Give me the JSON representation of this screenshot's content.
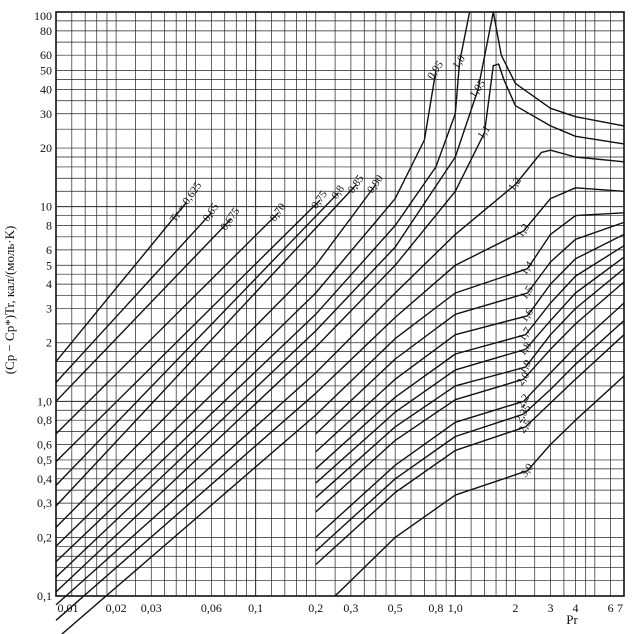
{
  "chart_data": {
    "type": "line",
    "title": "",
    "xlabel": "Pr",
    "ylabel": "(Cp − Cp*)Tr, кал/(моль·K)",
    "x_scale": "log",
    "y_scale": "log",
    "xlim": [
      0.01,
      7
    ],
    "ylim": [
      0.1,
      100
    ],
    "grid": true,
    "legend": "none",
    "colors": {
      "line": "#111111",
      "grid": "#222222",
      "background": "#ffffff"
    },
    "x_tick_labels": [
      {
        "v": 0.01,
        "t": "0,01"
      },
      {
        "v": 0.02,
        "t": "0,02"
      },
      {
        "v": 0.03,
        "t": "0,03"
      },
      {
        "v": 0.06,
        "t": "0,06"
      },
      {
        "v": 0.1,
        "t": "0,1"
      },
      {
        "v": 0.2,
        "t": "0,2"
      },
      {
        "v": 0.3,
        "t": "0,3"
      },
      {
        "v": 0.5,
        "t": "0,5"
      },
      {
        "v": 0.8,
        "t": "0,8"
      },
      {
        "v": 1.0,
        "t": "1,0"
      },
      {
        "v": 2,
        "t": "2"
      },
      {
        "v": 3,
        "t": "3"
      },
      {
        "v": 4,
        "t": "4"
      },
      {
        "v": 6,
        "t": "6"
      },
      {
        "v": 7,
        "t": "7"
      }
    ],
    "y_tick_labels": [
      {
        "v": 0.1,
        "t": "0,1"
      },
      {
        "v": 0.2,
        "t": "0,2"
      },
      {
        "v": 0.3,
        "t": "0,3"
      },
      {
        "v": 0.4,
        "t": "0,4"
      },
      {
        "v": 0.5,
        "t": "0,5"
      },
      {
        "v": 0.6,
        "t": "0,6"
      },
      {
        "v": 0.8,
        "t": "0,8"
      },
      {
        "v": 1.0,
        "t": "1,0"
      },
      {
        "v": 2,
        "t": "2"
      },
      {
        "v": 3,
        "t": "3"
      },
      {
        "v": 4,
        "t": "4"
      },
      {
        "v": 5,
        "t": "5"
      },
      {
        "v": 6,
        "t": "6"
      },
      {
        "v": 8,
        "t": "8"
      },
      {
        "v": 10,
        "t": "10"
      },
      {
        "v": 20,
        "t": "20"
      },
      {
        "v": 30,
        "t": "30"
      },
      {
        "v": 40,
        "t": "40"
      },
      {
        "v": 50,
        "t": "50"
      },
      {
        "v": 60,
        "t": "60"
      },
      {
        "v": 80,
        "t": "80"
      },
      {
        "v": 100,
        "t": "100"
      }
    ],
    "series": [
      {
        "label": "Tr = 0,625",
        "label_at": [
          0.045,
          10.5
        ],
        "points": [
          [
            0.01,
            1.6
          ],
          [
            0.045,
            10.5
          ]
        ]
      },
      {
        "label": "0,65",
        "label_at": [
          0.06,
          9.3
        ],
        "points": [
          [
            0.01,
            1.25
          ],
          [
            0.06,
            9.3
          ]
        ]
      },
      {
        "label": "0,675",
        "label_at": [
          0.075,
          8.6
        ],
        "points": [
          [
            0.01,
            1.0
          ],
          [
            0.075,
            8.6
          ]
        ]
      },
      {
        "label": "0,70",
        "label_at": [
          0.13,
          9.3
        ],
        "points": [
          [
            0.01,
            0.68
          ],
          [
            0.13,
            9.3
          ]
        ]
      },
      {
        "label": "0,75",
        "label_at": [
          0.21,
          10.8
        ],
        "points": [
          [
            0.01,
            0.49
          ],
          [
            0.21,
            10.8
          ]
        ]
      },
      {
        "label": "0,8",
        "label_at": [
          0.26,
          11.8
        ],
        "points": [
          [
            0.01,
            0.37
          ],
          [
            0.26,
            11.8
          ]
        ]
      },
      {
        "label": "0,85",
        "label_at": [
          0.32,
          13
        ],
        "points": [
          [
            0.01,
            0.29
          ],
          [
            0.32,
            13
          ]
        ]
      },
      {
        "label": "0,90",
        "label_at": [
          0.4,
          13
        ],
        "points": [
          [
            0.01,
            0.225
          ],
          [
            0.2,
            5
          ],
          [
            0.4,
            13
          ]
        ]
      },
      {
        "label": "0,95",
        "label_at": [
          0.8,
          50
        ],
        "points": [
          [
            0.01,
            0.18
          ],
          [
            0.2,
            3.6
          ],
          [
            0.5,
            11
          ],
          [
            0.7,
            22
          ],
          [
            0.8,
            50
          ]
        ]
      },
      {
        "label": "1,0",
        "label_at": [
          1.05,
          55
        ],
        "points": [
          [
            0.01,
            0.15
          ],
          [
            0.2,
            2.8
          ],
          [
            0.5,
            8
          ],
          [
            0.8,
            16
          ],
          [
            1.0,
            30
          ],
          [
            1.05,
            55
          ],
          [
            1.18,
            100
          ]
        ]
      },
      {
        "label": "1,05",
        "label_at": [
          1.3,
          40
        ],
        "points": [
          [
            0.01,
            0.125
          ],
          [
            0.2,
            2.3
          ],
          [
            0.5,
            6.2
          ],
          [
            1.0,
            18
          ],
          [
            1.3,
            40
          ],
          [
            1.55,
            100
          ],
          [
            1.7,
            60
          ],
          [
            2.0,
            43
          ],
          [
            3.0,
            32
          ],
          [
            4.0,
            29
          ],
          [
            7.0,
            26
          ]
        ]
      },
      {
        "label": "1,1",
        "label_at": [
          1.4,
          24
        ],
        "points": [
          [
            0.01,
            0.105
          ],
          [
            0.2,
            1.9
          ],
          [
            0.5,
            5.0
          ],
          [
            1.0,
            12
          ],
          [
            1.4,
            24
          ],
          [
            1.55,
            53
          ],
          [
            1.65,
            54
          ],
          [
            1.75,
            45
          ],
          [
            2.0,
            33
          ],
          [
            3.0,
            26
          ],
          [
            4.0,
            23
          ],
          [
            7.0,
            21
          ]
        ]
      },
      {
        "label": "1,2",
        "label_at": [
          2.0,
          13
        ],
        "points": [
          [
            0.01,
            0.09
          ],
          [
            0.2,
            1.4
          ],
          [
            0.5,
            3.6
          ],
          [
            1.0,
            7.2
          ],
          [
            2.0,
            13
          ],
          [
            2.7,
            19
          ],
          [
            3.0,
            19.5
          ],
          [
            4.0,
            18
          ],
          [
            7.0,
            17
          ]
        ]
      },
      {
        "label": "1,3",
        "label_at": [
          2.2,
          7.5
        ],
        "points": [
          [
            0.01,
            0.075
          ],
          [
            0.2,
            1.1
          ],
          [
            0.5,
            2.7
          ],
          [
            1.0,
            5
          ],
          [
            2.2,
            7.5
          ],
          [
            3.0,
            11
          ],
          [
            4.0,
            12.5
          ],
          [
            7.0,
            12
          ]
        ]
      },
      {
        "label": "1,4",
        "label_at": [
          2.3,
          4.8
        ],
        "points": [
          [
            0.01,
            0.06
          ],
          [
            0.2,
            0.85
          ],
          [
            0.5,
            2.1
          ],
          [
            1.0,
            3.6
          ],
          [
            2.3,
            4.8
          ],
          [
            3.0,
            7.2
          ],
          [
            4.0,
            9.0
          ],
          [
            7.0,
            9.3
          ]
        ]
      },
      {
        "label": "1,5",
        "label_at": [
          2.3,
          3.6
        ],
        "points": [
          [
            0.2,
            0.68
          ],
          [
            0.5,
            1.65
          ],
          [
            1.0,
            2.8
          ],
          [
            2.3,
            3.6
          ],
          [
            3.0,
            5.2
          ],
          [
            4.0,
            6.8
          ],
          [
            7.0,
            8.3
          ]
        ]
      },
      {
        "label": "1,6",
        "label_at": [
          2.3,
          2.75
        ],
        "points": [
          [
            0.2,
            0.55
          ],
          [
            0.5,
            1.3
          ],
          [
            1.0,
            2.2
          ],
          [
            2.3,
            2.75
          ],
          [
            3.0,
            4.0
          ],
          [
            4.0,
            5.4
          ],
          [
            7.0,
            7.2
          ]
        ]
      },
      {
        "label": "1,7",
        "label_at": [
          2.25,
          2.2
        ],
        "points": [
          [
            0.2,
            0.45
          ],
          [
            0.5,
            1.05
          ],
          [
            1.0,
            1.75
          ],
          [
            2.25,
            2.2
          ],
          [
            3.0,
            3.2
          ],
          [
            4.0,
            4.4
          ],
          [
            7.0,
            6.3
          ]
        ]
      },
      {
        "label": "1,8",
        "label_at": [
          2.25,
          1.85
        ],
        "points": [
          [
            0.2,
            0.38
          ],
          [
            0.5,
            0.88
          ],
          [
            1.0,
            1.45
          ],
          [
            2.25,
            1.85
          ],
          [
            3.0,
            2.6
          ],
          [
            4.0,
            3.6
          ],
          [
            7.0,
            5.5
          ]
        ]
      },
      {
        "label": "1,9",
        "label_at": [
          2.25,
          1.5
        ],
        "points": [
          [
            0.2,
            0.32
          ],
          [
            0.5,
            0.74
          ],
          [
            1.0,
            1.2
          ],
          [
            2.25,
            1.5
          ],
          [
            3.0,
            2.2
          ],
          [
            4.0,
            3.0
          ],
          [
            7.0,
            4.8
          ]
        ]
      },
      {
        "label": "2,0",
        "label_at": [
          2.2,
          1.3
        ],
        "points": [
          [
            0.2,
            0.27
          ],
          [
            0.5,
            0.63
          ],
          [
            1.0,
            1.02
          ],
          [
            2.2,
            1.3
          ],
          [
            3.0,
            1.85
          ],
          [
            4.0,
            2.5
          ],
          [
            7.0,
            4.1
          ]
        ]
      },
      {
        "label": "2,2",
        "label_at": [
          2.2,
          1.0
        ],
        "points": [
          [
            0.2,
            0.2
          ],
          [
            0.5,
            0.47
          ],
          [
            1.0,
            0.78
          ],
          [
            2.2,
            1.0
          ],
          [
            3.0,
            1.4
          ],
          [
            4.0,
            1.9
          ],
          [
            7.0,
            3.2
          ]
        ]
      },
      {
        "label": "2,35",
        "label_at": [
          2.2,
          0.86
        ],
        "points": [
          [
            0.2,
            0.17
          ],
          [
            0.5,
            0.4
          ],
          [
            1.0,
            0.66
          ],
          [
            2.2,
            0.86
          ],
          [
            3.0,
            1.15
          ],
          [
            4.0,
            1.55
          ],
          [
            7.0,
            2.6
          ]
        ]
      },
      {
        "label": "2,5",
        "label_at": [
          2.25,
          0.74
        ],
        "points": [
          [
            0.2,
            0.145
          ],
          [
            0.5,
            0.34
          ],
          [
            1.0,
            0.56
          ],
          [
            2.25,
            0.74
          ],
          [
            3.0,
            0.98
          ],
          [
            4.0,
            1.3
          ],
          [
            7.0,
            2.2
          ]
        ]
      },
      {
        "label": "3,0",
        "label_at": [
          2.3,
          0.44
        ],
        "points": [
          [
            0.25,
            0.1
          ],
          [
            0.5,
            0.2
          ],
          [
            1.0,
            0.33
          ],
          [
            2.3,
            0.44
          ],
          [
            3.0,
            0.6
          ],
          [
            4.0,
            0.8
          ],
          [
            7.0,
            1.35
          ]
        ]
      }
    ]
  }
}
